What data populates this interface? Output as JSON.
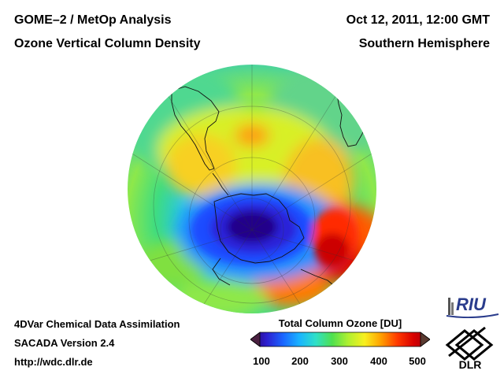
{
  "header": {
    "title_line1": "GOME–2 / MetOp Analysis",
    "title_line2": "Ozone Vertical Column Density",
    "date": "Oct 12, 2011, 12:00 GMT",
    "region": "Southern Hemisphere"
  },
  "footer": {
    "line1": "4DVar Chemical Data Assimilation",
    "line2": "SACADA Version 2.4",
    "line3": "http://wdc.dlr.de"
  },
  "colorbar": {
    "title": "Total Column Ozone [DU]",
    "ticks": [
      "100",
      "200",
      "300",
      "400",
      "500"
    ],
    "colors": [
      "#2a0066",
      "#2d1fd0",
      "#1a66ff",
      "#1ab4ff",
      "#2fe0c8",
      "#4fe04f",
      "#b0f030",
      "#f8f020",
      "#ffa000",
      "#ff3a00",
      "#d80000",
      "#9a0010"
    ]
  },
  "logos": {
    "riu": "RIU",
    "dlr": "DLR"
  }
}
